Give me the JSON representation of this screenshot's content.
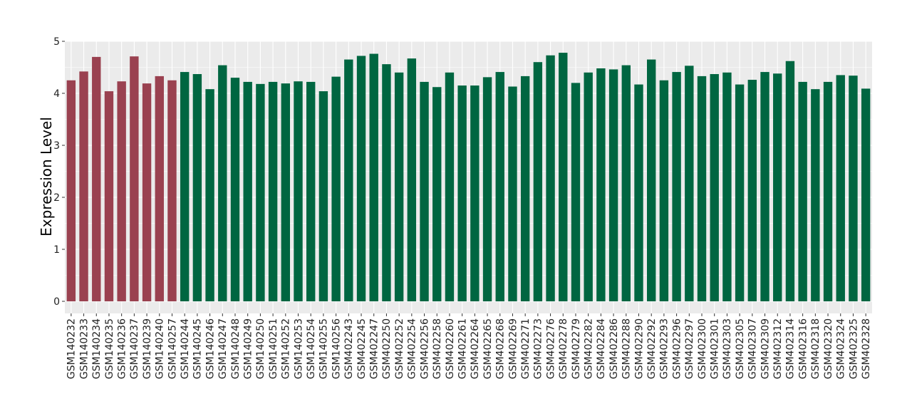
{
  "chart_data": {
    "type": "bar",
    "title": "",
    "xlabel": "",
    "ylabel": "Expression Level",
    "ylim": [
      0,
      5
    ],
    "yticks": [
      0,
      1,
      2,
      3,
      4,
      5
    ],
    "grid": true,
    "legend": "none",
    "colors": {
      "group1": "#9a4150",
      "group2": "#006641",
      "panel": "#ebebeb",
      "grid": "#ffffff"
    },
    "categories": [
      "GSM140232",
      "GSM140233",
      "GSM140234",
      "GSM140235",
      "GSM140236",
      "GSM140237",
      "GSM140239",
      "GSM140240",
      "GSM140257",
      "GSM140244",
      "GSM140245",
      "GSM140246",
      "GSM140247",
      "GSM140248",
      "GSM140249",
      "GSM140250",
      "GSM140251",
      "GSM140252",
      "GSM140253",
      "GSM140254",
      "GSM140255",
      "GSM140256",
      "GSM402243",
      "GSM402245",
      "GSM402247",
      "GSM402250",
      "GSM402252",
      "GSM402254",
      "GSM402256",
      "GSM402258",
      "GSM402260",
      "GSM402261",
      "GSM402264",
      "GSM402265",
      "GSM402268",
      "GSM402269",
      "GSM402271",
      "GSM402273",
      "GSM402276",
      "GSM402278",
      "GSM402279",
      "GSM402282",
      "GSM402284",
      "GSM402286",
      "GSM402288",
      "GSM402290",
      "GSM402292",
      "GSM402293",
      "GSM402296",
      "GSM402297",
      "GSM402300",
      "GSM402301",
      "GSM402303",
      "GSM402305",
      "GSM402307",
      "GSM402309",
      "GSM402312",
      "GSM402314",
      "GSM402316",
      "GSM402318",
      "GSM402320",
      "GSM402324",
      "GSM402325",
      "GSM402328"
    ],
    "values": [
      4.25,
      4.42,
      4.7,
      4.04,
      4.23,
      4.71,
      4.19,
      4.33,
      4.25,
      4.41,
      4.37,
      4.08,
      4.54,
      4.3,
      4.22,
      4.18,
      4.22,
      4.19,
      4.23,
      4.22,
      4.04,
      4.32,
      4.65,
      4.72,
      4.76,
      4.56,
      4.4,
      4.67,
      4.22,
      4.12,
      4.4,
      4.15,
      4.15,
      4.31,
      4.41,
      4.13,
      4.33,
      4.6,
      4.73,
      4.78,
      4.2,
      4.4,
      4.48,
      4.46,
      4.54,
      4.17,
      4.65,
      4.25,
      4.41,
      4.53,
      4.33,
      4.37,
      4.4,
      4.17,
      4.26,
      4.41,
      4.38,
      4.62,
      4.22,
      4.08,
      4.22,
      4.35,
      4.34,
      4.09
    ],
    "groups": [
      1,
      1,
      1,
      1,
      1,
      1,
      1,
      1,
      1,
      2,
      2,
      2,
      2,
      2,
      2,
      2,
      2,
      2,
      2,
      2,
      2,
      2,
      2,
      2,
      2,
      2,
      2,
      2,
      2,
      2,
      2,
      2,
      2,
      2,
      2,
      2,
      2,
      2,
      2,
      2,
      2,
      2,
      2,
      2,
      2,
      2,
      2,
      2,
      2,
      2,
      2,
      2,
      2,
      2,
      2,
      2,
      2,
      2,
      2,
      2,
      2,
      2,
      2,
      2
    ]
  }
}
